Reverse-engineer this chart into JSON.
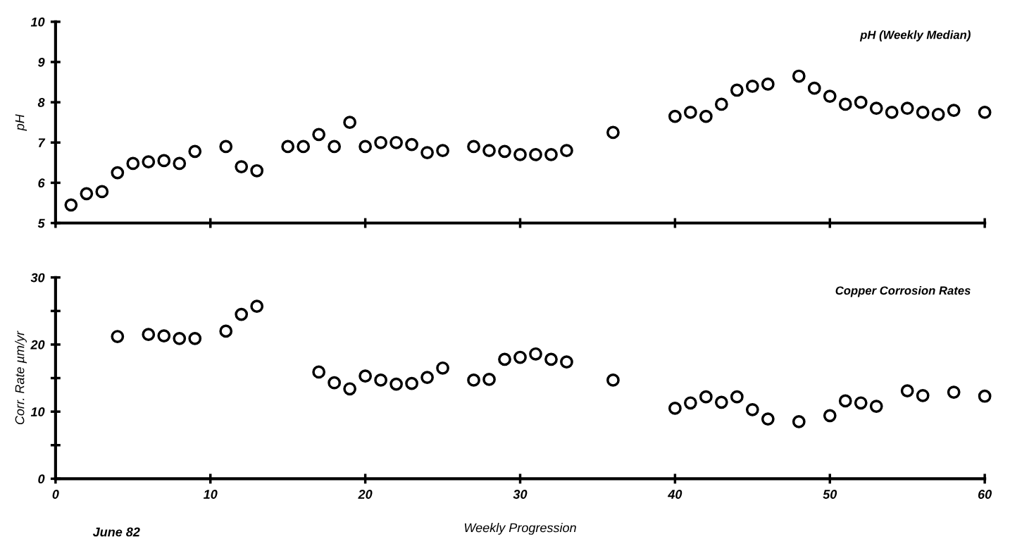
{
  "chart_data": [
    {
      "type": "scatter",
      "ylabel": "pH",
      "annotations": [
        "pH (Weekly Median)"
      ],
      "marker": "circle",
      "grid": false,
      "legend": false,
      "tick_labels": "y",
      "xlim": [
        0,
        60
      ],
      "xticks": [
        0,
        10,
        20,
        30,
        40,
        50,
        60
      ],
      "ylim": [
        5,
        10
      ],
      "yticks": [
        5,
        6,
        7,
        8,
        9,
        10
      ],
      "series": [
        {
          "color": "#000000",
          "x": [
            1,
            2,
            3,
            4,
            5,
            6,
            7,
            8,
            9,
            11,
            12,
            13,
            15,
            16,
            17,
            18,
            19,
            20,
            21,
            22,
            23,
            24,
            25,
            27,
            28,
            29,
            30,
            31,
            32,
            33,
            36,
            40,
            41,
            42,
            43,
            44,
            45,
            46,
            48,
            49,
            50,
            51,
            52,
            53,
            54,
            55,
            56,
            57,
            58,
            60
          ],
          "values": [
            5.45,
            5.73,
            5.78,
            6.25,
            6.48,
            6.52,
            6.55,
            6.48,
            6.78,
            6.9,
            6.4,
            6.3,
            6.9,
            6.9,
            7.2,
            6.9,
            7.5,
            6.9,
            7.0,
            7.0,
            6.95,
            6.75,
            6.8,
            6.9,
            6.8,
            6.78,
            6.7,
            6.7,
            6.7,
            6.8,
            7.25,
            7.65,
            7.75,
            7.65,
            7.95,
            8.3,
            8.4,
            8.45,
            8.65,
            8.35,
            8.15,
            7.95,
            8.0,
            7.85,
            7.75,
            7.85,
            7.75,
            7.7,
            7.8,
            7.75
          ]
        }
      ]
    },
    {
      "type": "scatter",
      "ylabel": "Corr. Rate µm/yr",
      "xlabel": "Weekly Progression",
      "annotations": [
        "Copper Corrosion Rates",
        "June 82"
      ],
      "marker": "circle",
      "grid": false,
      "legend": false,
      "xlim": [
        0,
        60
      ],
      "xticks": [
        0,
        10,
        20,
        30,
        40,
        50,
        60
      ],
      "ylim": [
        0,
        30
      ],
      "yticks": [
        0,
        {
          "value": 5,
          "label": null
        },
        10,
        {
          "value": 15,
          "label": null
        },
        20,
        {
          "value": 25,
          "label": null
        },
        30
      ],
      "series": [
        {
          "color": "#000000",
          "x": [
            4,
            6,
            7,
            8,
            9,
            11,
            12,
            13,
            17,
            18,
            19,
            20,
            21,
            22,
            23,
            24,
            25,
            27,
            28,
            29,
            30,
            31,
            32,
            33,
            36,
            40,
            41,
            42,
            43,
            44,
            45,
            46,
            48,
            50,
            51,
            52,
            53,
            55,
            56,
            58,
            60
          ],
          "values": [
            21.2,
            21.5,
            21.3,
            20.9,
            20.9,
            22.0,
            24.5,
            25.7,
            15.9,
            14.3,
            13.4,
            15.3,
            14.7,
            14.1,
            14.2,
            15.1,
            16.5,
            14.7,
            14.8,
            17.8,
            18.1,
            18.6,
            17.8,
            17.4,
            14.7,
            10.5,
            11.3,
            12.2,
            11.4,
            12.2,
            10.3,
            8.9,
            8.5,
            9.4,
            11.6,
            11.3,
            10.8,
            13.1,
            12.4,
            12.9,
            12.3
          ]
        }
      ]
    }
  ]
}
